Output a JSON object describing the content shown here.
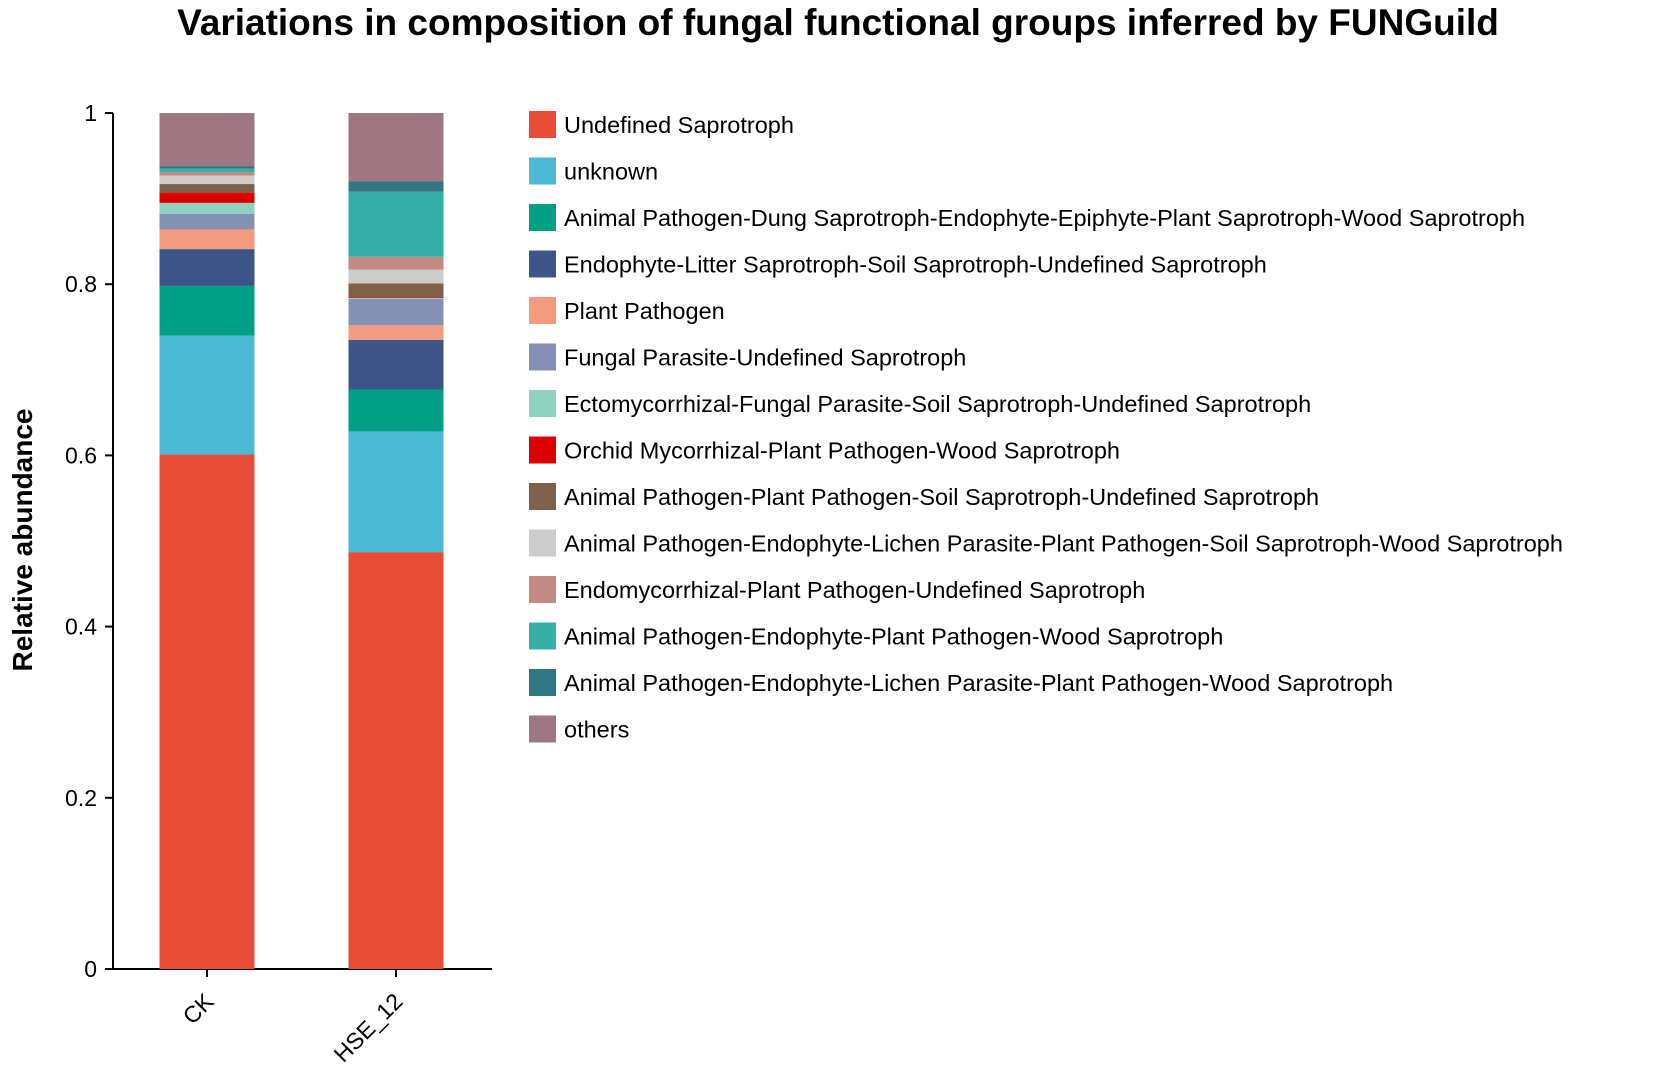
{
  "chart_data": {
    "type": "bar",
    "stacked": true,
    "title": "Variations in composition of fungal functional groups inferred by FUNGuild",
    "ylabel": "Relative abundance",
    "xlabel": "",
    "ylim": [
      0,
      1
    ],
    "yticks": [
      "0",
      "0.2",
      "0.4",
      "0.6",
      "0.8",
      "1"
    ],
    "ytick_values": [
      0,
      0.2,
      0.4,
      0.6,
      0.8,
      1
    ],
    "categories": [
      "CK",
      "HSE_12"
    ],
    "legend_position": "right",
    "grid": false,
    "series": [
      {
        "name": "Undefined Saprotroph",
        "color": "#e64c36",
        "values": [
          0.601,
          0.487
        ]
      },
      {
        "name": "unknown",
        "color": "#4cbad5",
        "values": [
          0.139,
          0.141
        ]
      },
      {
        "name": "Animal Pathogen-Dung Saprotroph-Endophyte-Epiphyte-Plant Saprotroph-Wood Saprotroph",
        "color": "#00a087",
        "values": [
          0.058,
          0.049
        ]
      },
      {
        "name": "Endophyte-Litter Saprotroph-Soil Saprotroph-Undefined Saprotroph",
        "color": "#3c5488",
        "values": [
          0.043,
          0.058
        ]
      },
      {
        "name": "Plant Pathogen",
        "color": "#f39b7f",
        "values": [
          0.023,
          0.017
        ]
      },
      {
        "name": "Fungal Parasite-Undefined Saprotroph",
        "color": "#8491b4",
        "values": [
          0.018,
          0.031
        ]
      },
      {
        "name": "Ectomycorrhizal-Fungal Parasite-Soil Saprotroph-Undefined Saprotroph",
        "color": "#91d1c2",
        "values": [
          0.013,
          0.001
        ]
      },
      {
        "name": "Orchid Mycorrhizal-Plant Pathogen-Wood Saprotroph",
        "color": "#dc0000",
        "values": [
          0.012,
          0.001
        ]
      },
      {
        "name": "Animal Pathogen-Plant Pathogen-Soil Saprotroph-Undefined Saprotroph",
        "color": "#7e6148",
        "values": [
          0.01,
          0.016
        ]
      },
      {
        "name": "Animal Pathogen-Endophyte-Lichen Parasite-Plant Pathogen-Soil Saprotroph-Wood Saprotroph",
        "color": "#cccccc",
        "values": [
          0.01,
          0.016
        ]
      },
      {
        "name": "Endomycorrhizal-Plant Pathogen-Undefined Saprotroph",
        "color": "#c28a80",
        "values": [
          0.004,
          0.015
        ]
      },
      {
        "name": "Animal Pathogen-Endophyte-Plant Pathogen-Wood Saprotroph",
        "color": "#37afa9",
        "values": [
          0.004,
          0.076
        ]
      },
      {
        "name": "Animal Pathogen-Endophyte-Lichen Parasite-Plant Pathogen-Wood Saprotroph",
        "color": "#317685",
        "values": [
          0.003,
          0.012
        ]
      },
      {
        "name": "others",
        "color": "#9f7783",
        "values": [
          0.062,
          0.08
        ]
      }
    ]
  }
}
